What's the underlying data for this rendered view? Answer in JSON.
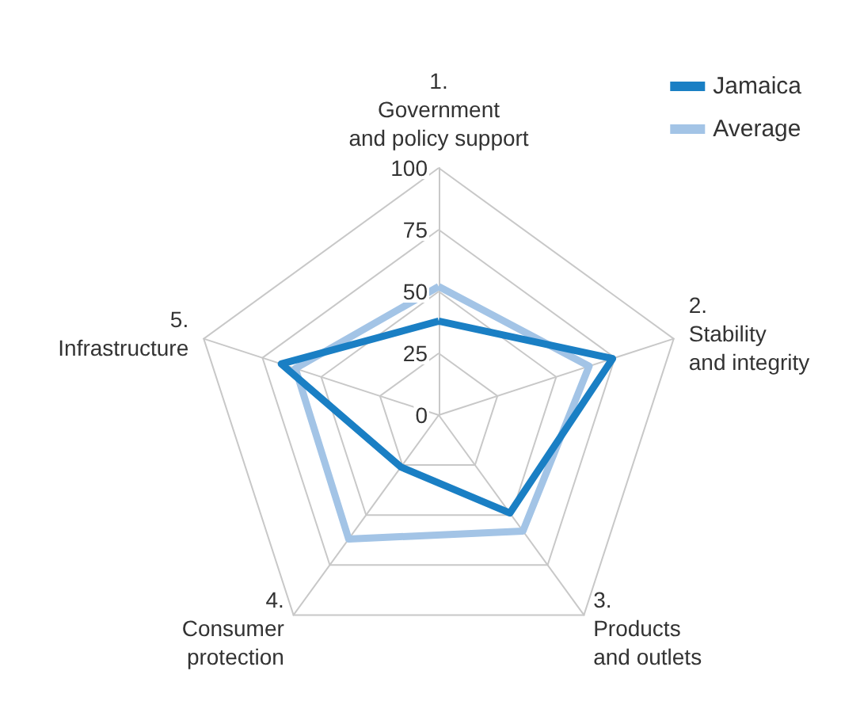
{
  "chart_data": {
    "type": "radar",
    "categories": [
      "1.\nGovernment\nand policy support",
      "2.\nStability\nand integrity",
      "3.\nProducts\nand outlets",
      "4.\nConsumer\nprotection",
      "5.\nInfrastructure"
    ],
    "series": [
      {
        "name": "Jamaica",
        "color": "#1a7fc4",
        "values": [
          38,
          74,
          49,
          26,
          67
        ]
      },
      {
        "name": "Average",
        "color": "#a3c4e6",
        "values": [
          52,
          64,
          58,
          62,
          61
        ]
      }
    ],
    "ylim": [
      0,
      100
    ],
    "yticks": [
      0,
      25,
      50,
      75,
      100
    ],
    "grid": true,
    "legend": "top right",
    "marker": "none",
    "line_style": "solid"
  }
}
